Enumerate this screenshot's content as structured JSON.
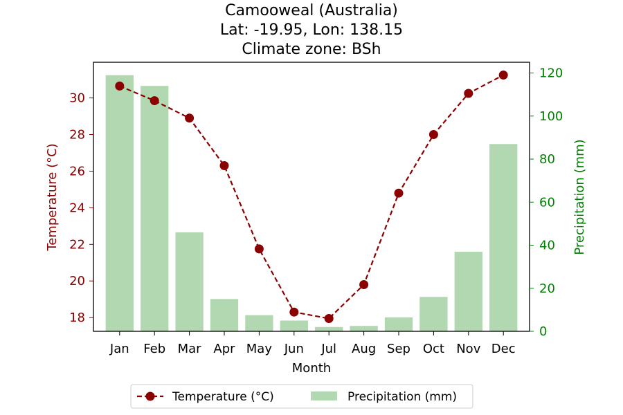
{
  "chart_data": {
    "type": "bar+line",
    "title_lines": [
      "Camooweal (Australia)",
      "Lat: -19.95, Lon: 138.15",
      "Climate zone: BSh"
    ],
    "xlabel": "Month",
    "ylabel_left": "Temperature (°C)",
    "ylabel_right": "Precipitation (mm)",
    "categories": [
      "Jan",
      "Feb",
      "Mar",
      "Apr",
      "May",
      "Jun",
      "Jul",
      "Aug",
      "Sep",
      "Oct",
      "Nov",
      "Dec"
    ],
    "temperature": {
      "name": "Temperature (°C)",
      "color": "#8b0000",
      "values": [
        30.65,
        29.85,
        28.9,
        26.3,
        21.75,
        18.3,
        17.95,
        19.8,
        24.8,
        28.0,
        30.25,
        31.25
      ],
      "ylim": [
        17.25,
        31.95
      ],
      "ticks": [
        18,
        20,
        22,
        24,
        26,
        28,
        30
      ]
    },
    "precipitation": {
      "name": "Precipitation (mm)",
      "color": "#b2d8b2",
      "values": [
        119,
        114,
        46,
        15,
        7.5,
        5,
        2,
        2.5,
        6.5,
        16,
        37,
        87
      ],
      "ylim": [
        0,
        125
      ],
      "ticks": [
        0,
        20,
        40,
        60,
        80,
        100,
        120
      ]
    },
    "axis_colors": {
      "left": "#8b0000",
      "right": "#008000"
    },
    "legend": {
      "placement": "bottom-center"
    }
  }
}
